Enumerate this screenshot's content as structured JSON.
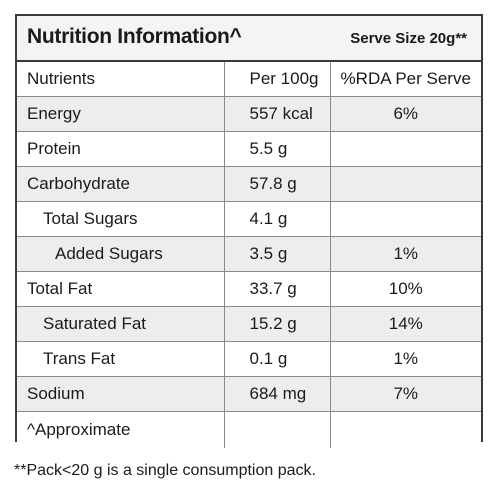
{
  "title": "Nutrition Information^",
  "serve_size": "Serve Size 20g**",
  "columns": [
    "Nutrients",
    "Per 100g",
    "%RDA Per Serve"
  ],
  "rows": [
    {
      "name": "Energy",
      "per100": "557 kcal",
      "rda": "6%"
    },
    {
      "name": "Protein",
      "per100": "5.5 g",
      "rda": ""
    },
    {
      "name": "Carbohydrate",
      "per100": "57.8 g",
      "rda": ""
    },
    {
      "name": "Total Sugars",
      "per100": "4.1 g",
      "rda": ""
    },
    {
      "name": "Added Sugars",
      "per100": "3.5 g",
      "rda": "1%"
    },
    {
      "name": "Total Fat",
      "per100": "33.7 g",
      "rda": "10%"
    },
    {
      "name": "Saturated Fat",
      "per100": "15.2 g",
      "rda": "14%"
    },
    {
      "name": "Trans Fat",
      "per100": "0.1 g",
      "rda": "1%"
    },
    {
      "name": "Sodium",
      "per100": "684 mg",
      "rda": "7%"
    }
  ],
  "approx_note": "^Approximate",
  "footnote": "**Pack<20 g is a single consumption pack."
}
